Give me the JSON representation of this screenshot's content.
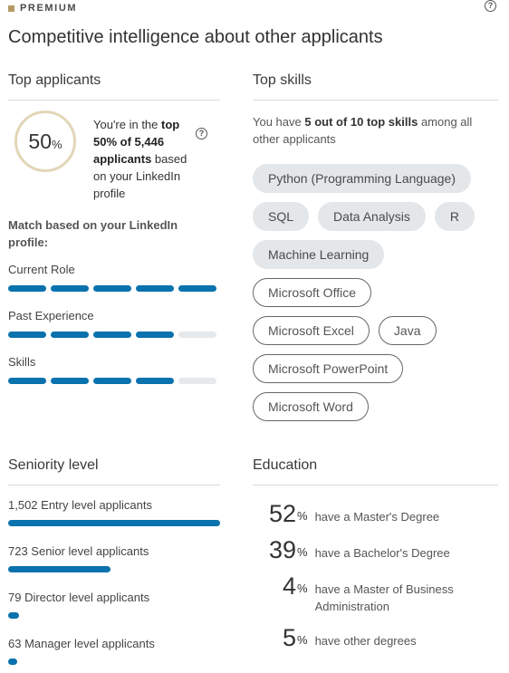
{
  "header": {
    "badge": "PREMIUM",
    "title": "Competitive intelligence about other applicants"
  },
  "top_applicants": {
    "heading": "Top applicants",
    "percentile_num": "50",
    "percentile_sign": "%",
    "text_pre": "You're in the ",
    "text_bold": "top 50% of 5,446 applicants",
    "text_post": " based on your LinkedIn profile",
    "match_label": "Match based on your LinkedIn profile:",
    "metrics": [
      {
        "label": "Current Role",
        "filled": 5,
        "total": 5
      },
      {
        "label": "Past Experience",
        "filled": 4,
        "total": 5
      },
      {
        "label": "Skills",
        "filled": 4,
        "total": 5
      }
    ]
  },
  "top_skills": {
    "heading": "Top skills",
    "desc_pre": "You have ",
    "desc_bold": "5 out of 10 top skills",
    "desc_post": " among all other applicants",
    "chip_rows": [
      [
        {
          "label": "Python (Programming Language)",
          "matched": true
        }
      ],
      [
        {
          "label": "SQL",
          "matched": true
        },
        {
          "label": "Data Analysis",
          "matched": true
        },
        {
          "label": "R",
          "matched": true
        }
      ],
      [
        {
          "label": "Machine Learning",
          "matched": true
        }
      ],
      [
        {
          "label": "Microsoft Office",
          "matched": false
        }
      ],
      [
        {
          "label": "Microsoft Excel",
          "matched": false
        },
        {
          "label": "Java",
          "matched": false
        }
      ],
      [
        {
          "label": "Microsoft PowerPoint",
          "matched": false
        }
      ],
      [
        {
          "label": "Microsoft Word",
          "matched": false
        }
      ]
    ]
  },
  "seniority": {
    "heading": "Seniority level",
    "levels": [
      {
        "label": "1,502 Entry level applicants",
        "count": 1502
      },
      {
        "label": "723 Senior level applicants",
        "count": 723
      },
      {
        "label": "79 Director level applicants",
        "count": 79
      },
      {
        "label": "63 Manager level applicants",
        "count": 63
      }
    ]
  },
  "education": {
    "heading": "Education",
    "items": [
      {
        "num": "52",
        "pct": "%",
        "text": "have a Master's Degree"
      },
      {
        "num": "39",
        "pct": "%",
        "text": "have a Bachelor's Degree"
      },
      {
        "num": "4",
        "pct": "%",
        "text": "have a Master of Business Administration"
      },
      {
        "num": "5",
        "pct": "%",
        "text": "have other degrees"
      }
    ]
  },
  "colors": {
    "accent": "#0a72ad",
    "track": "#e6e9ec",
    "premium_gold": "#b59a63"
  },
  "icons": {
    "help": "question-circle-icon"
  }
}
